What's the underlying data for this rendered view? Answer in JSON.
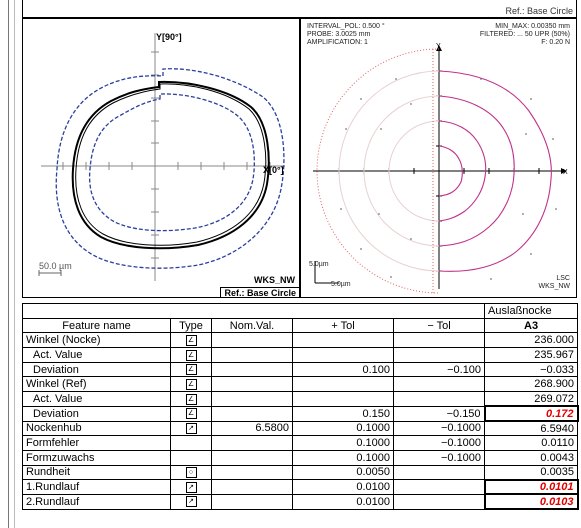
{
  "header": {
    "ref_top": "Ref.: Base Circle"
  },
  "left_plot": {
    "y_axis_label": "Y[90°]",
    "x_axis_label": "X[0°]",
    "scale_label": "50.0 µm",
    "name_label": "WKS_NW",
    "ref_label": "Ref.: Base Circle"
  },
  "right_plot": {
    "interval": "INTERVAL_POL: 0.500 °",
    "probe": "PROBE:  3.0025 mm",
    "amplification": "AMPLIFICATION: 1",
    "min_max": "MIN_MAX: 0.00350 mm",
    "filtered": "FILTERED:  ... 50  UPR (50%)",
    "force": "F:  0.20 N",
    "y_label": "Y",
    "x_label": "X",
    "scale_v": "5.0µm",
    "scale_h": "5.0µm",
    "lsc": "LSC",
    "name": "WKS_NW"
  },
  "table": {
    "group_header": "Auslaßnocke",
    "headers": [
      "Feature name",
      "Type",
      "Nom.Val.",
      "+ Tol",
      "− Tol",
      "A3"
    ],
    "rows": [
      {
        "name": "Winkel (Nocke)",
        "type": "∠",
        "nom": "",
        "ptol": "",
        "mtol": "",
        "val": "236.000",
        "indent": false,
        "flag": false
      },
      {
        "name": "Act. Value",
        "type": "∠",
        "nom": "",
        "ptol": "",
        "mtol": "",
        "val": "235.967",
        "indent": true,
        "flag": false
      },
      {
        "name": "Deviation",
        "type": "∠",
        "nom": "",
        "ptol": "0.100",
        "mtol": "−0.100",
        "val": "−0.033",
        "indent": true,
        "flag": false
      },
      {
        "name": "Winkel (Ref)",
        "type": "∠",
        "nom": "",
        "ptol": "",
        "mtol": "",
        "val": "268.900",
        "indent": false,
        "flag": false
      },
      {
        "name": "Act. Value",
        "type": "∠",
        "nom": "",
        "ptol": "",
        "mtol": "",
        "val": "269.072",
        "indent": true,
        "flag": false
      },
      {
        "name": "Deviation",
        "type": "∠",
        "nom": "",
        "ptol": "0.150",
        "mtol": "−0.150",
        "val": "0.172",
        "indent": true,
        "flag": true
      },
      {
        "name": "Nockenhub",
        "type": "↗",
        "nom": "6.5800",
        "ptol": "0.1000",
        "mtol": "−0.1000",
        "val": "6.5940",
        "indent": false,
        "flag": false
      },
      {
        "name": "Formfehler",
        "type": "",
        "nom": "",
        "ptol": "0.1000",
        "mtol": "−0.1000",
        "val": "0.0110",
        "indent": false,
        "flag": false
      },
      {
        "name": "Formzuwachs",
        "type": "",
        "nom": "",
        "ptol": "0.1000",
        "mtol": "−0.1000",
        "val": "0.0043",
        "indent": false,
        "flag": false
      },
      {
        "name": "Rundheit",
        "type": "○",
        "nom": "",
        "ptol": "0.0050",
        "mtol": "",
        "val": "0.0035",
        "indent": false,
        "flag": false
      },
      {
        "name": "1.Rundlauf",
        "type": "↗",
        "nom": "",
        "ptol": "0.0100",
        "mtol": "",
        "val": "0.0101",
        "indent": false,
        "flag": true
      },
      {
        "name": "2.Rundlauf",
        "type": "↗",
        "nom": "",
        "ptol": "0.0100",
        "mtol": "",
        "val": "0.0103",
        "indent": false,
        "flag": true
      }
    ]
  },
  "colors": {
    "tolerance_band": "#2b3f9e",
    "profile": "#000000",
    "polar": "#c0318a",
    "reference": "#e06060",
    "flag": "#e00000"
  }
}
